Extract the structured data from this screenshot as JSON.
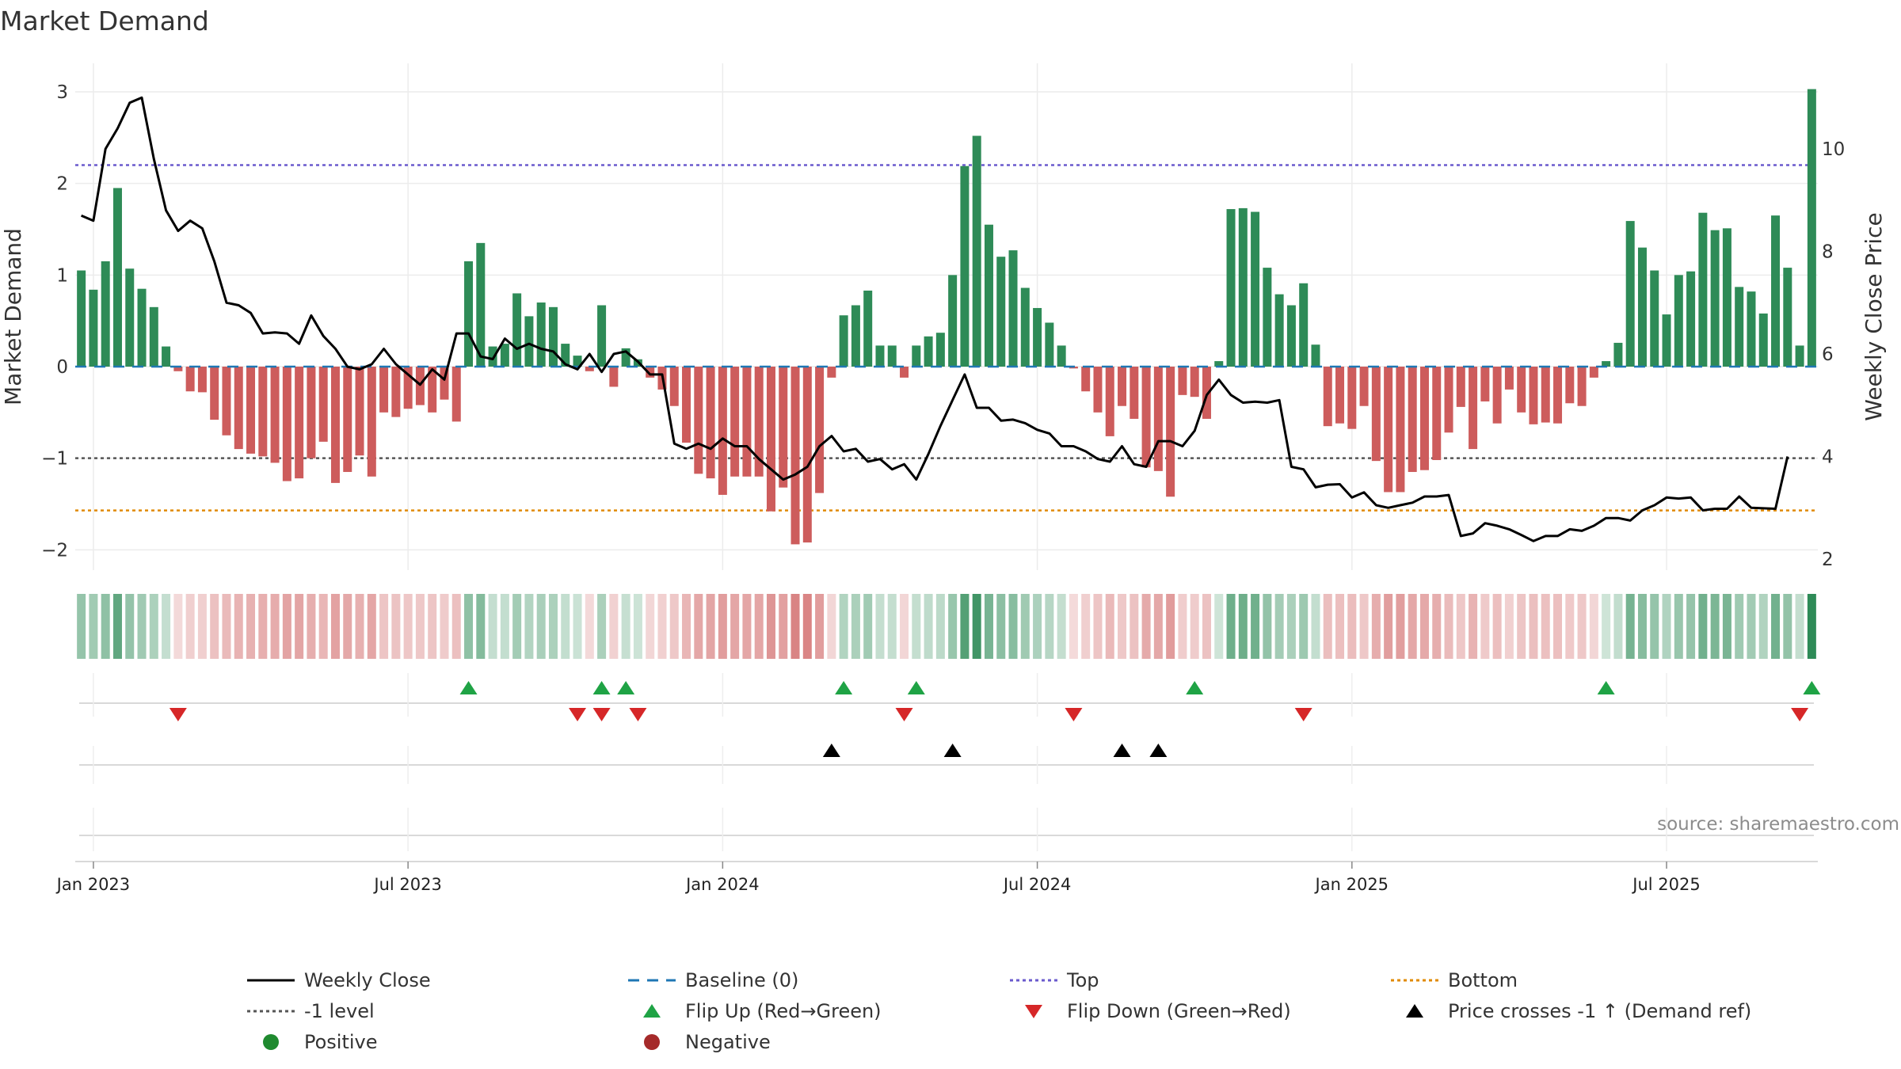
{
  "chart_data": {
    "type": "bar",
    "title": "Market Demand",
    "ylabel": "Market Demand",
    "y2label": "Weekly Close Price",
    "ylim": [
      -2.2,
      3.3
    ],
    "y2lim": [
      1.6,
      11.5
    ],
    "yticks": [
      "3",
      "2",
      "1",
      "0",
      "−1",
      "−2"
    ],
    "yticks_values": [
      3,
      2,
      1,
      0,
      -1,
      -2
    ],
    "y2ticks": [
      "10",
      "8",
      "6",
      "4",
      "2"
    ],
    "y2ticks_values": [
      10,
      8,
      6,
      4,
      2
    ],
    "xticks": [
      "Jan 2023",
      "Jul 2023",
      "Jan 2024",
      "Jul 2024",
      "Jan 2025",
      "Jul 2025"
    ],
    "xticks_week_index": [
      1,
      27,
      53,
      79,
      105,
      131
    ],
    "grid": true,
    "legend_position": "bottom",
    "source": "source: sharemaestro.com",
    "levels": {
      "baseline": 0,
      "top": 2.2,
      "minus_one": -1,
      "bottom": -1.57
    },
    "demand": [
      1.05,
      0.84,
      1.15,
      1.95,
      1.07,
      0.85,
      0.65,
      0.22,
      -0.05,
      -0.27,
      -0.28,
      -0.58,
      -0.75,
      -0.9,
      -0.95,
      -0.98,
      -1.05,
      -1.25,
      -1.22,
      -1.0,
      -0.82,
      -1.27,
      -1.15,
      -0.97,
      -1.2,
      -0.5,
      -0.55,
      -0.46,
      -0.42,
      -0.5,
      -0.36,
      -0.6,
      1.15,
      1.35,
      0.22,
      0.25,
      0.8,
      0.55,
      0.7,
      0.65,
      0.25,
      0.12,
      -0.05,
      0.67,
      -0.22,
      0.2,
      0.08,
      -0.12,
      -0.25,
      -0.43,
      -0.83,
      -1.17,
      -1.22,
      -1.4,
      -1.2,
      -1.2,
      -1.2,
      -1.58,
      -1.32,
      -1.94,
      -1.92,
      -1.38,
      -0.12,
      0.56,
      0.67,
      0.83,
      0.23,
      0.23,
      -0.12,
      0.23,
      0.33,
      0.37,
      1.0,
      2.19,
      2.52,
      1.55,
      1.2,
      1.27,
      0.86,
      0.64,
      0.48,
      0.23,
      -0.02,
      -0.27,
      -0.5,
      -0.76,
      -0.43,
      -0.57,
      -1.1,
      -1.14,
      -1.42,
      -0.31,
      -0.33,
      -0.57,
      0.06,
      1.72,
      1.73,
      1.69,
      1.08,
      0.79,
      0.67,
      0.91,
      0.24,
      -0.65,
      -0.62,
      -0.68,
      -0.43,
      -1.03,
      -1.37,
      -1.37,
      -1.15,
      -1.13,
      -1.02,
      -0.72,
      -0.44,
      -0.9,
      -0.38,
      -0.62,
      -0.25,
      -0.5,
      -0.63,
      -0.61,
      -0.62,
      -0.4,
      -0.43,
      -0.12,
      0.06,
      0.26,
      1.59,
      1.3,
      1.05,
      0.57,
      1.0,
      1.04,
      1.68,
      1.49,
      1.51,
      0.87,
      0.82,
      0.58,
      1.65,
      1.08,
      0.23,
      3.03
    ],
    "weekly_close": [
      8.7,
      8.6,
      10.0,
      10.4,
      10.9,
      11.0,
      9.8,
      8.8,
      8.4,
      8.6,
      8.45,
      7.8,
      7.0,
      6.95,
      6.8,
      6.4,
      6.42,
      6.4,
      6.2,
      6.75,
      6.35,
      6.1,
      5.75,
      5.7,
      5.8,
      6.1,
      5.8,
      5.6,
      5.4,
      5.7,
      5.5,
      6.4,
      6.4,
      5.95,
      5.9,
      6.3,
      6.1,
      6.2,
      6.1,
      6.05,
      5.8,
      5.7,
      6.0,
      5.65,
      6.0,
      6.05,
      5.85,
      5.6,
      5.6,
      4.25,
      4.15,
      4.25,
      4.15,
      4.35,
      4.2,
      4.2,
      3.95,
      3.75,
      3.55,
      3.65,
      3.8,
      4.2,
      4.4,
      4.1,
      4.15,
      3.9,
      3.95,
      3.75,
      3.85,
      3.55,
      4.05,
      4.6,
      5.1,
      5.6,
      4.95,
      4.95,
      4.7,
      4.72,
      4.65,
      4.52,
      4.45,
      4.2,
      4.2,
      4.1,
      3.95,
      3.9,
      4.2,
      3.85,
      3.8,
      4.3,
      4.3,
      4.2,
      4.5,
      5.2,
      5.5,
      5.2,
      5.05,
      5.07,
      5.05,
      5.1,
      3.8,
      3.75,
      3.4,
      3.45,
      3.46,
      3.2,
      3.3,
      3.05,
      3.0,
      3.05,
      3.1,
      3.22,
      3.22,
      3.25,
      2.45,
      2.5,
      2.7,
      2.65,
      2.58,
      2.47,
      2.35,
      2.45,
      2.45,
      2.58,
      2.55,
      2.65,
      2.8,
      2.8,
      2.75,
      2.95,
      3.05,
      3.2,
      3.18,
      3.2,
      2.95,
      2.98,
      2.98,
      3.22,
      3.0,
      2.99,
      2.98,
      4.0
    ],
    "flip_up_weeks": [
      32,
      43,
      45,
      63,
      69,
      92,
      126,
      143
    ],
    "flip_down_weeks": [
      8,
      41,
      43,
      46,
      68,
      82,
      101,
      142
    ],
    "price_cross_weeks": [
      62,
      72,
      86,
      89
    ],
    "heat_scale": {
      "positive_color": "#2e8b57",
      "negative_color": "#cd5c5c"
    }
  },
  "legend": [
    {
      "key": "weekly_close",
      "label": "Weekly Close",
      "symbol": "solid-line",
      "color": "#000000"
    },
    {
      "key": "baseline",
      "label": "Baseline (0)",
      "symbol": "dash-line",
      "color": "#1f77b4"
    },
    {
      "key": "top",
      "label": "Top",
      "symbol": "dot-line",
      "color": "#6a5acd"
    },
    {
      "key": "bottom",
      "label": "Bottom",
      "symbol": "dot-line",
      "color": "#e08a00"
    },
    {
      "key": "minus_one",
      "label": "-1 level",
      "symbol": "dot-line",
      "color": "#555555"
    },
    {
      "key": "flip_up",
      "label": "Flip Up (Red→Green)",
      "symbol": "triangle-up",
      "color": "#1fa345"
    },
    {
      "key": "flip_down",
      "label": "Flip Down (Green→Red)",
      "symbol": "triangle-down",
      "color": "#d62728"
    },
    {
      "key": "price_cross",
      "label": "Price crosses -1 ↑ (Demand ref)",
      "symbol": "triangle-up",
      "color": "#000000"
    },
    {
      "key": "positive",
      "label": "Positive",
      "symbol": "circle",
      "color": "#1f8a2f"
    },
    {
      "key": "negative",
      "label": "Negative",
      "symbol": "circle",
      "color": "#a52a2a"
    }
  ],
  "colors": {
    "positive_bar": "#2e8b57",
    "negative_bar": "#cd5c5c",
    "price_line": "#000000",
    "baseline": "#1f77b4",
    "top_line": "#6a5acd",
    "bottom_line": "#e08a00",
    "minus_one_line": "#555555",
    "flip_up": "#1fa345",
    "flip_down": "#d62728",
    "price_cross": "#000000"
  }
}
